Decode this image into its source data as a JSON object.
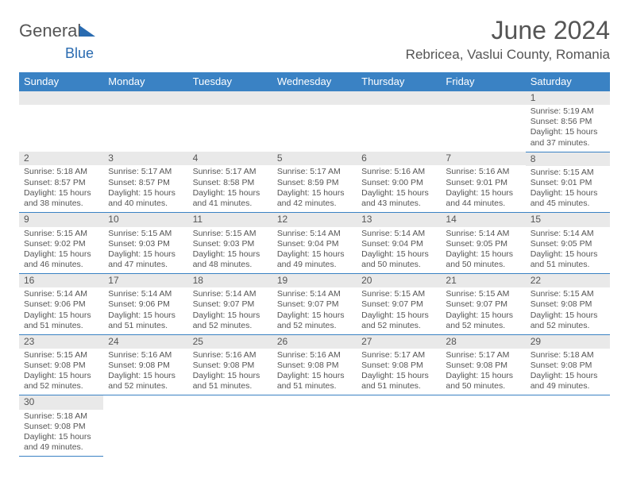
{
  "logo": {
    "text1": "General",
    "text2": "Blue"
  },
  "title": "June 2024",
  "location": "Rebricea, Vaslui County, Romania",
  "weekday_headers": [
    "Sunday",
    "Monday",
    "Tuesday",
    "Wednesday",
    "Thursday",
    "Friday",
    "Saturday"
  ],
  "colors": {
    "header_bg": "#3a82c4",
    "header_fg": "#ffffff",
    "daynum_bg": "#e9e9e9",
    "cell_border": "#3a82c4",
    "text": "#555555",
    "logo_accent": "#2a6bb0"
  },
  "layout": {
    "first_weekday_index": 6,
    "num_days": 30
  },
  "days": {
    "1": {
      "sunrise": "5:19 AM",
      "sunset": "8:56 PM",
      "daylight": "15 hours and 37 minutes."
    },
    "2": {
      "sunrise": "5:18 AM",
      "sunset": "8:57 PM",
      "daylight": "15 hours and 38 minutes."
    },
    "3": {
      "sunrise": "5:17 AM",
      "sunset": "8:57 PM",
      "daylight": "15 hours and 40 minutes."
    },
    "4": {
      "sunrise": "5:17 AM",
      "sunset": "8:58 PM",
      "daylight": "15 hours and 41 minutes."
    },
    "5": {
      "sunrise": "5:17 AM",
      "sunset": "8:59 PM",
      "daylight": "15 hours and 42 minutes."
    },
    "6": {
      "sunrise": "5:16 AM",
      "sunset": "9:00 PM",
      "daylight": "15 hours and 43 minutes."
    },
    "7": {
      "sunrise": "5:16 AM",
      "sunset": "9:01 PM",
      "daylight": "15 hours and 44 minutes."
    },
    "8": {
      "sunrise": "5:15 AM",
      "sunset": "9:01 PM",
      "daylight": "15 hours and 45 minutes."
    },
    "9": {
      "sunrise": "5:15 AM",
      "sunset": "9:02 PM",
      "daylight": "15 hours and 46 minutes."
    },
    "10": {
      "sunrise": "5:15 AM",
      "sunset": "9:03 PM",
      "daylight": "15 hours and 47 minutes."
    },
    "11": {
      "sunrise": "5:15 AM",
      "sunset": "9:03 PM",
      "daylight": "15 hours and 48 minutes."
    },
    "12": {
      "sunrise": "5:14 AM",
      "sunset": "9:04 PM",
      "daylight": "15 hours and 49 minutes."
    },
    "13": {
      "sunrise": "5:14 AM",
      "sunset": "9:04 PM",
      "daylight": "15 hours and 50 minutes."
    },
    "14": {
      "sunrise": "5:14 AM",
      "sunset": "9:05 PM",
      "daylight": "15 hours and 50 minutes."
    },
    "15": {
      "sunrise": "5:14 AM",
      "sunset": "9:05 PM",
      "daylight": "15 hours and 51 minutes."
    },
    "16": {
      "sunrise": "5:14 AM",
      "sunset": "9:06 PM",
      "daylight": "15 hours and 51 minutes."
    },
    "17": {
      "sunrise": "5:14 AM",
      "sunset": "9:06 PM",
      "daylight": "15 hours and 51 minutes."
    },
    "18": {
      "sunrise": "5:14 AM",
      "sunset": "9:07 PM",
      "daylight": "15 hours and 52 minutes."
    },
    "19": {
      "sunrise": "5:14 AM",
      "sunset": "9:07 PM",
      "daylight": "15 hours and 52 minutes."
    },
    "20": {
      "sunrise": "5:15 AM",
      "sunset": "9:07 PM",
      "daylight": "15 hours and 52 minutes."
    },
    "21": {
      "sunrise": "5:15 AM",
      "sunset": "9:07 PM",
      "daylight": "15 hours and 52 minutes."
    },
    "22": {
      "sunrise": "5:15 AM",
      "sunset": "9:08 PM",
      "daylight": "15 hours and 52 minutes."
    },
    "23": {
      "sunrise": "5:15 AM",
      "sunset": "9:08 PM",
      "daylight": "15 hours and 52 minutes."
    },
    "24": {
      "sunrise": "5:16 AM",
      "sunset": "9:08 PM",
      "daylight": "15 hours and 52 minutes."
    },
    "25": {
      "sunrise": "5:16 AM",
      "sunset": "9:08 PM",
      "daylight": "15 hours and 51 minutes."
    },
    "26": {
      "sunrise": "5:16 AM",
      "sunset": "9:08 PM",
      "daylight": "15 hours and 51 minutes."
    },
    "27": {
      "sunrise": "5:17 AM",
      "sunset": "9:08 PM",
      "daylight": "15 hours and 51 minutes."
    },
    "28": {
      "sunrise": "5:17 AM",
      "sunset": "9:08 PM",
      "daylight": "15 hours and 50 minutes."
    },
    "29": {
      "sunrise": "5:18 AM",
      "sunset": "9:08 PM",
      "daylight": "15 hours and 49 minutes."
    },
    "30": {
      "sunrise": "5:18 AM",
      "sunset": "9:08 PM",
      "daylight": "15 hours and 49 minutes."
    }
  },
  "labels": {
    "sunrise": "Sunrise: ",
    "sunset": "Sunset: ",
    "daylight": "Daylight: "
  }
}
